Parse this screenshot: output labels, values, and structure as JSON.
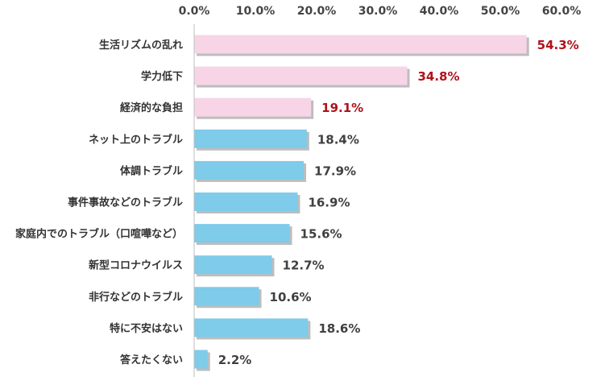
{
  "chart_data": {
    "type": "bar",
    "orientation": "horizontal",
    "title": "",
    "xlabel": "",
    "ylabel": "",
    "xlim": [
      0,
      60
    ],
    "ticks": [
      "0.0%",
      "10.0%",
      "20.0%",
      "30.0%",
      "40.0%",
      "50.0%",
      "60.0%"
    ],
    "tick_values": [
      0,
      10,
      20,
      30,
      40,
      50,
      60
    ],
    "tick_position": "top",
    "grid": false,
    "categories": [
      "生活リズムの乱れ",
      "学力低下",
      "経済的な負担",
      "ネット上のトラブル",
      "体調トラブル",
      "事件事故などのトラブル",
      "家庭内でのトラブル（口喧嘩など）",
      "新型コロナウイルス",
      "非行などのトラブル",
      "特に不安はない",
      "答えたくない"
    ],
    "values": [
      54.3,
      34.8,
      19.1,
      18.4,
      17.9,
      16.9,
      15.6,
      12.7,
      10.6,
      18.6,
      2.2
    ],
    "value_labels": [
      "54.3%",
      "34.8%",
      "19.1%",
      "18.4%",
      "17.9%",
      "16.9%",
      "15.6%",
      "12.7%",
      "10.6%",
      "18.6%",
      "2.2%"
    ],
    "highlight_count": 3,
    "colors": {
      "highlight_bar": "#f7d5e6",
      "normal_bar": "#7ecbea",
      "bar_shadow": "#bdbdbd",
      "highlight_label": "#b0121b",
      "normal_label": "#404040",
      "axis": "#bfbfbf"
    }
  }
}
